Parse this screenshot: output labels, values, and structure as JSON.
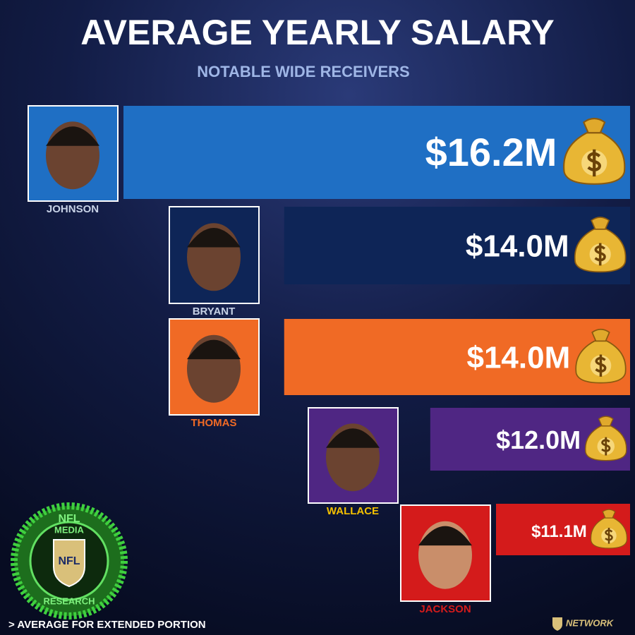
{
  "chart_data": {
    "type": "bar",
    "orientation": "horizontal",
    "title": "AVERAGE YEARLY SALARY",
    "subtitle": "NOTABLE WIDE RECEIVERS",
    "categories": [
      "JOHNSON",
      "BRYANT",
      "THOMAS",
      "WALLACE",
      "JACKSON"
    ],
    "values": [
      16.2,
      14.0,
      14.0,
      12.0,
      11.1
    ],
    "value_labels": [
      "$16.2M",
      "$14.0M",
      "$14.0M",
      "$12.0M",
      "$11.1M"
    ],
    "colors": [
      "#1f6fc4",
      "#0e2557",
      "#f06a25",
      "#4f2683",
      "#d41b1b"
    ],
    "label_colors": [
      "#c7d2e6",
      "#c7d2e6",
      "#f06a25",
      "#f5c000",
      "#d41b1b"
    ],
    "footnote": "> AVERAGE FOR EXTENDED PORTION",
    "logo_text": [
      "NFL",
      "MEDIA",
      "RESEARCH"
    ],
    "network_text": "NETWORK"
  }
}
